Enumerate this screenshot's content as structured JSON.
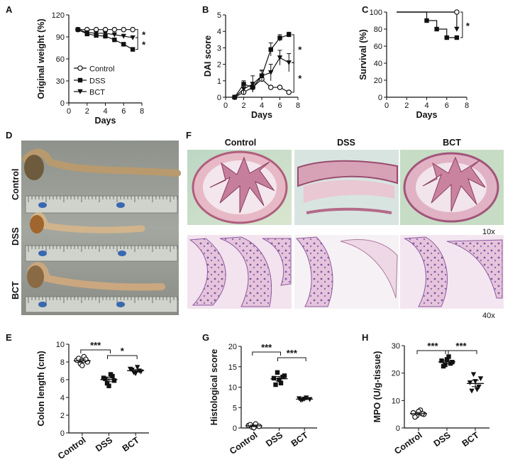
{
  "figure": {
    "panels": {
      "A": "A",
      "B": "B",
      "C": "C",
      "D": "D",
      "E": "E",
      "F": "F",
      "G": "G",
      "H": "H"
    },
    "photo_D": {
      "rows": [
        "Control",
        "DSS",
        "BCT"
      ]
    },
    "photo_F": {
      "columns": [
        "Control",
        "DSS",
        "BCT"
      ],
      "mag_top": "10x",
      "mag_bottom": "40x"
    },
    "colors": {
      "ink": "#111111",
      "tissue_pink": "#d8a9b8",
      "tissue_purple": "#8c6aa6",
      "slide_bg_top": "#cfe0c8",
      "colon_tan": "#c9a886",
      "photo_bg": "#9a9e97",
      "ruler_blue": "#3a68b0"
    }
  },
  "chart_data": [
    {
      "id": "A",
      "type": "line",
      "title": "",
      "xlabel": "Days",
      "ylabel": "Original weight (%)",
      "xlim": [
        0,
        8
      ],
      "ylim": [
        0,
        120
      ],
      "xticks": [
        0,
        2,
        4,
        6,
        8
      ],
      "yticks": [
        0,
        30,
        60,
        90,
        120
      ],
      "x": [
        1,
        2,
        3,
        4,
        5,
        6,
        7
      ],
      "legend_position": "bottom-left",
      "series": [
        {
          "name": "Control",
          "marker": "open-circle",
          "values": [
            100,
            100,
            100,
            100,
            100,
            100,
            100
          ]
        },
        {
          "name": "DSS",
          "marker": "filled-square",
          "values": [
            100,
            94,
            92,
            91,
            86,
            80,
            73
          ]
        },
        {
          "name": "BCT",
          "marker": "filled-triangle-down",
          "values": [
            100,
            96,
            95,
            95,
            93,
            91,
            89
          ]
        }
      ],
      "annotations": [
        "*",
        "*"
      ]
    },
    {
      "id": "B",
      "type": "line",
      "title": "",
      "xlabel": "Days",
      "ylabel": "DAI score",
      "xlim": [
        0,
        8
      ],
      "ylim": [
        0,
        5
      ],
      "xticks": [
        0,
        2,
        4,
        6,
        8
      ],
      "yticks": [
        0,
        1,
        2,
        3,
        4,
        5
      ],
      "x": [
        1,
        2,
        3,
        4,
        5,
        6,
        7
      ],
      "series": [
        {
          "name": "Control",
          "marker": "open-circle",
          "values": [
            0,
            0.3,
            0.6,
            1.1,
            0.6,
            0.6,
            0.3
          ]
        },
        {
          "name": "DSS",
          "marker": "filled-square",
          "values": [
            0,
            0.8,
            0.6,
            1.3,
            2.9,
            3.6,
            3.8
          ]
        },
        {
          "name": "BCT",
          "marker": "filled-triangle-down",
          "values": [
            0,
            0.5,
            0.8,
            1.3,
            1.5,
            2.4,
            2.1
          ]
        }
      ],
      "annotations": [
        "*",
        "*"
      ]
    },
    {
      "id": "C",
      "type": "line",
      "title": "",
      "xlabel": "Days",
      "ylabel": "Survival (%)",
      "xlim": [
        0,
        8
      ],
      "ylim": [
        0,
        100
      ],
      "xticks": [
        0,
        2,
        4,
        6,
        8
      ],
      "yticks": [
        0,
        20,
        40,
        60,
        80,
        100
      ],
      "series": [
        {
          "name": "Control",
          "marker": "open-circle",
          "x": [
            1,
            7
          ],
          "values": [
            100,
            100
          ]
        },
        {
          "name": "DSS",
          "marker": "filled-square",
          "x": [
            1,
            4,
            5,
            6,
            7
          ],
          "values": [
            100,
            90,
            80,
            70,
            70
          ]
        },
        {
          "name": "BCT",
          "marker": "filled-triangle-down",
          "x": [
            1,
            7
          ],
          "values": [
            100,
            80
          ]
        }
      ],
      "annotations": [
        "*"
      ]
    },
    {
      "id": "E",
      "type": "scatter",
      "title": "",
      "xlabel": "",
      "ylabel": "Colon length (cm)",
      "ylim": [
        0,
        10
      ],
      "yticks": [
        0,
        2,
        4,
        6,
        8,
        10
      ],
      "categories": [
        "Control",
        "DSS",
        "BCT"
      ],
      "series": [
        {
          "name": "Control",
          "marker": "open-circle",
          "values": [
            8.2,
            7.8,
            8.6,
            8.0,
            8.4,
            7.6,
            8.3
          ]
        },
        {
          "name": "DSS",
          "marker": "filled-square",
          "values": [
            6.2,
            5.6,
            6.6,
            5.9,
            6.1,
            5.3,
            6.4
          ]
        },
        {
          "name": "BCT",
          "marker": "filled-triangle-down",
          "values": [
            7.2,
            6.8,
            7.4,
            6.9,
            7.1,
            6.7,
            7.0
          ]
        }
      ],
      "comparisons": [
        [
          "Control",
          "DSS",
          "***"
        ],
        [
          "DSS",
          "BCT",
          "*"
        ]
      ]
    },
    {
      "id": "G",
      "type": "scatter",
      "title": "",
      "xlabel": "",
      "ylabel": "Histological score",
      "ylim": [
        0,
        20
      ],
      "yticks": [
        0,
        5,
        10,
        15,
        20
      ],
      "categories": [
        "Control",
        "DSS",
        "BCT"
      ],
      "series": [
        {
          "name": "Control",
          "marker": "open-circle",
          "values": [
            0.6,
            0.2,
            1.0,
            0.4,
            0.8,
            0.1
          ]
        },
        {
          "name": "DSS",
          "marker": "filled-square",
          "values": [
            12.2,
            13.6,
            11.0,
            12.8,
            10.6,
            11.8,
            12.5
          ]
        },
        {
          "name": "BCT",
          "marker": "filled-triangle-down",
          "values": [
            7.2,
            6.9,
            7.4,
            7.0,
            6.8,
            7.1
          ]
        }
      ],
      "comparisons": [
        [
          "Control",
          "DSS",
          "***"
        ],
        [
          "DSS",
          "BCT",
          "***"
        ]
      ]
    },
    {
      "id": "H",
      "type": "scatter",
      "title": "",
      "xlabel": "",
      "ylabel": "MPO (U/g-tissue)",
      "ylim": [
        0,
        30
      ],
      "yticks": [
        0,
        10,
        20,
        30
      ],
      "categories": [
        "Control",
        "DSS",
        "BCT"
      ],
      "series": [
        {
          "name": "Control",
          "marker": "open-circle",
          "values": [
            5.5,
            4.5,
            6.5,
            5.0,
            4.0,
            6.0,
            5.2
          ]
        },
        {
          "name": "DSS",
          "marker": "filled-square",
          "values": [
            24.5,
            23.0,
            26.0,
            24.0,
            22.5,
            25.0,
            23.5
          ]
        },
        {
          "name": "BCT",
          "marker": "filled-triangle-down",
          "values": [
            16.5,
            19.5,
            14.0,
            18.0,
            13.5,
            17.0,
            15.0
          ]
        }
      ],
      "comparisons": [
        [
          "Control",
          "DSS",
          "***"
        ],
        [
          "DSS",
          "BCT",
          "***"
        ]
      ]
    }
  ]
}
